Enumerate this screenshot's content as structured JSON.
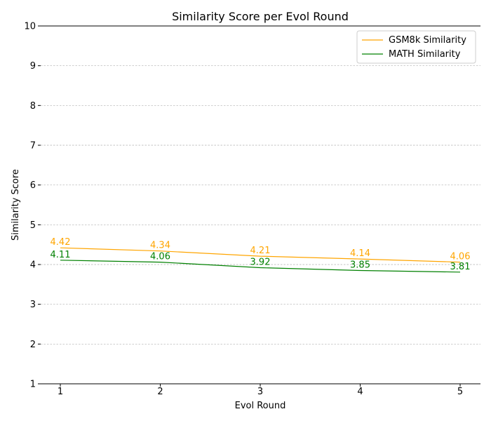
{
  "chart_data": {
    "type": "line",
    "title": "Similarity Score per Evol Round",
    "xlabel": "Evol Round",
    "ylabel": "Similarity Score",
    "x": [
      1,
      2,
      3,
      4,
      5
    ],
    "xticks": [
      "1",
      "2",
      "3",
      "4",
      "5"
    ],
    "ylim": [
      1,
      10
    ],
    "yticks": [
      "1",
      "2",
      "3",
      "4",
      "5",
      "6",
      "7",
      "8",
      "9",
      "10"
    ],
    "grid": "horizontal-dashed",
    "legend_position": "top-right",
    "series": [
      {
        "name": "GSM8k Similarity",
        "color": "#ffa500",
        "values": [
          4.42,
          4.34,
          4.21,
          4.14,
          4.06
        ],
        "labels": [
          "4.42",
          "4.34",
          "4.21",
          "4.14",
          "4.06"
        ]
      },
      {
        "name": "MATH Similarity",
        "color": "#008000",
        "values": [
          4.11,
          4.06,
          3.92,
          3.85,
          3.81
        ],
        "labels": [
          "4.11",
          "4.06",
          "3.92",
          "3.85",
          "3.81"
        ]
      }
    ]
  }
}
